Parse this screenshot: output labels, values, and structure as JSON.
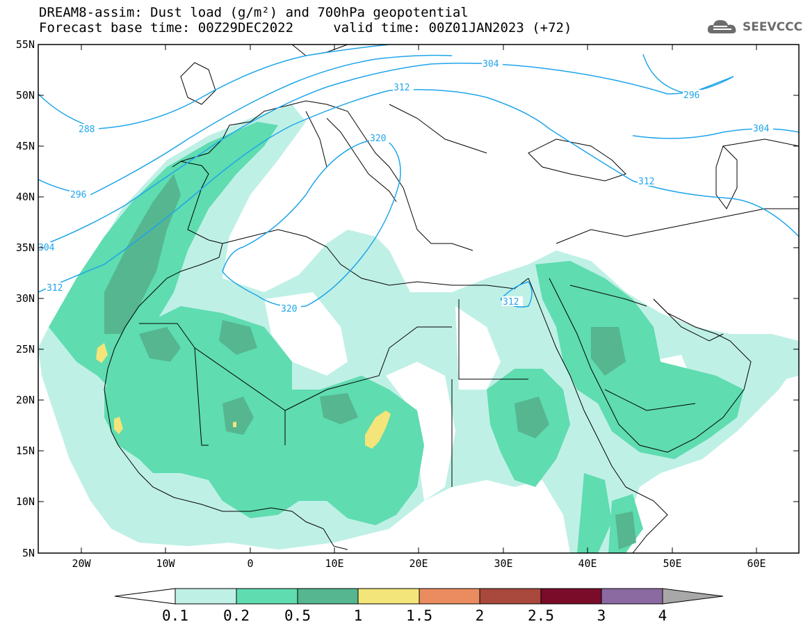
{
  "title": {
    "line1": "DREAM8-assim: Dust load (g/m²) and 700hPa geopotential",
    "line2": "Forecast base time: 00Z29DEC2022     valid time: 00Z01JAN2023 (+72)"
  },
  "logo": {
    "text": "SEEVCCC",
    "icon": "cloud-logo-icon"
  },
  "axes": {
    "lat_labels": [
      "55N",
      "50N",
      "45N",
      "40N",
      "35N",
      "30N",
      "25N",
      "20N",
      "15N",
      "10N",
      "5N"
    ],
    "lon_labels": [
      "20W",
      "10W",
      "0",
      "10E",
      "20E",
      "30E",
      "40E",
      "50E",
      "60E"
    ]
  },
  "contours": {
    "color": "#1ea5ea",
    "labels": [
      "288",
      "296",
      "304",
      "312",
      "320",
      "304",
      "312",
      "296",
      "304",
      "312",
      "312",
      "320"
    ]
  },
  "colorbar": {
    "labels": [
      "0.1",
      "0.2",
      "0.5",
      "1",
      "1.5",
      "2",
      "2.5",
      "3",
      "4"
    ],
    "colors": [
      "#ffffff",
      "#bff0e6",
      "#5fdcb0",
      "#55b690",
      "#f3e57a",
      "#ea8c5f",
      "#a9483c",
      "#7a0c2a",
      "#8a6aa1",
      "#a8a8a8"
    ]
  },
  "map_colors": {
    "level1": "#bff0e6",
    "level2": "#5fdcb0",
    "level3": "#55b690",
    "level4": "#f3e57a",
    "border": "#000000"
  }
}
